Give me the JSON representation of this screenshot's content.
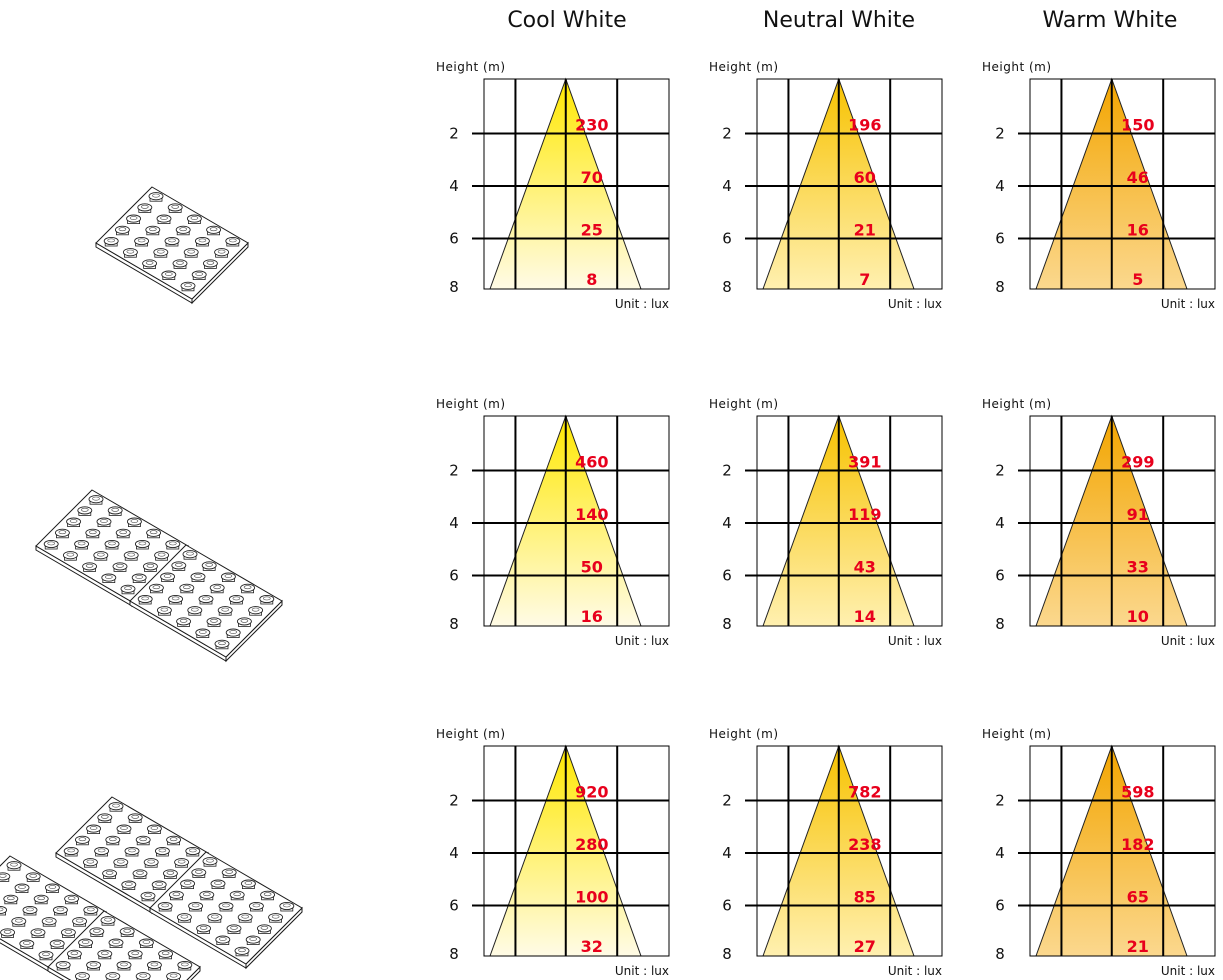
{
  "columns": [
    "Cool White",
    "Neutral White",
    "Warm White"
  ],
  "axis": {
    "height_label": "Height (m)",
    "ticks": [
      "2",
      "4",
      "6",
      "8"
    ],
    "unit_label": "Unit : lux"
  },
  "colors": {
    "lux_text": "#e8001c",
    "cool_white": [
      "#ffe800",
      "#fffbe6"
    ],
    "neutral_white": [
      "#f7c200",
      "#fff0b0"
    ],
    "warm_white": [
      "#f3a500",
      "#fbd88e"
    ],
    "grid": "#000000",
    "panel_outline": "#1a1a1a"
  },
  "rows": [
    {
      "panels": 1,
      "lux": [
        [
          "230",
          "70",
          "25",
          "8"
        ],
        [
          "196",
          "60",
          "21",
          "7"
        ],
        [
          "150",
          "46",
          "16",
          "5"
        ]
      ]
    },
    {
      "panels": 2,
      "lux": [
        [
          "460",
          "140",
          "50",
          "16"
        ],
        [
          "391",
          "119",
          "43",
          "14"
        ],
        [
          "299",
          "91",
          "33",
          "10"
        ]
      ]
    },
    {
      "panels": 4,
      "lux": [
        [
          "920",
          "280",
          "100",
          "32"
        ],
        [
          "782",
          "238",
          "85",
          "27"
        ],
        [
          "598",
          "182",
          "65",
          "21"
        ]
      ]
    }
  ]
}
